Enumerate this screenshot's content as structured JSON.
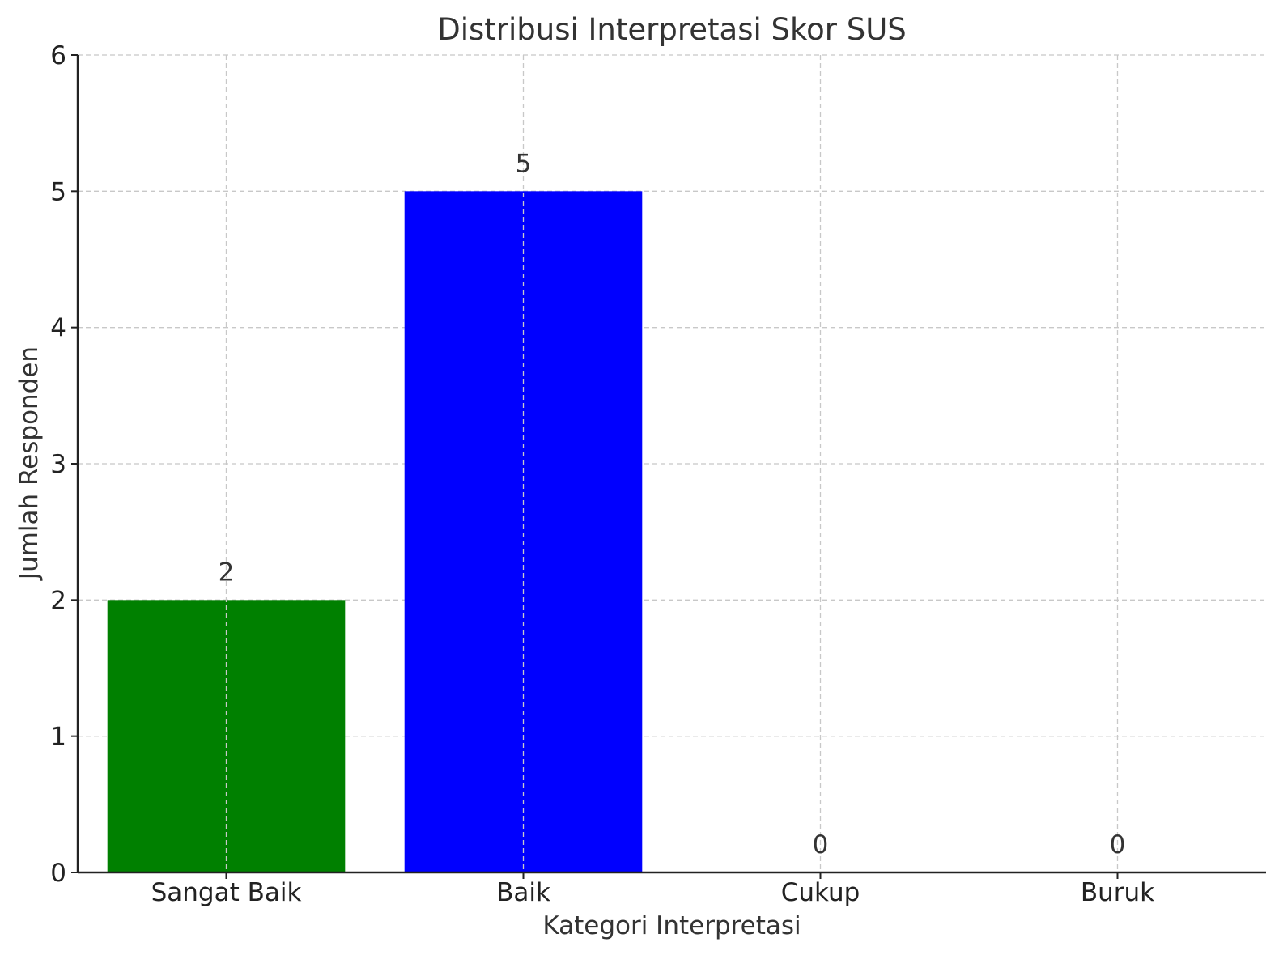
{
  "chart_data": {
    "type": "bar",
    "title": "Distribusi Interpretasi Skor SUS",
    "xlabel": "Kategori Interpretasi",
    "ylabel": "Jumlah Responden",
    "categories": [
      "Sangat Baik",
      "Baik",
      "Cukup",
      "Buruk"
    ],
    "values": [
      2,
      5,
      0,
      0
    ],
    "colors": [
      "#008000",
      "#0000ff",
      "#808080",
      "#ff0000"
    ],
    "ylim": [
      0,
      6
    ],
    "yticks": [
      0,
      1,
      2,
      3,
      4,
      5,
      6
    ],
    "grid": true,
    "data_labels": true
  }
}
